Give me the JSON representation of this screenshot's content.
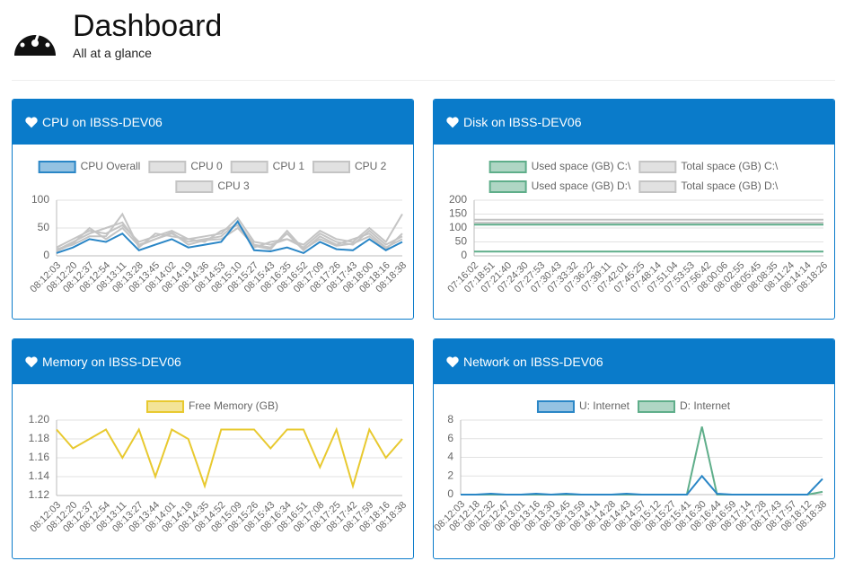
{
  "header": {
    "title": "Dashboard",
    "subtitle": "All at a glance"
  },
  "chart_data": [
    {
      "type": "line",
      "title": "CPU on IBSS-DEV06",
      "categories": [
        "08:12:03",
        "08:12:20",
        "08:12:37",
        "08:12:54",
        "08:13:11",
        "08:13:28",
        "08:13:45",
        "08:14:02",
        "08:14:19",
        "08:14:36",
        "08:14:53",
        "08:15:10",
        "08:15:27",
        "08:15:43",
        "08:16:35",
        "08:16:52",
        "08:17:09",
        "08:17:26",
        "08:17:43",
        "08:18:00",
        "08:18:16",
        "08:18:38"
      ],
      "series": [
        {
          "name": "CPU Overall",
          "color": "#2a86c6",
          "values": [
            5,
            15,
            30,
            25,
            40,
            10,
            20,
            30,
            15,
            20,
            25,
            62,
            10,
            8,
            15,
            5,
            25,
            12,
            10,
            30,
            10,
            25
          ]
        },
        {
          "name": "CPU 0",
          "color": "#c4c4c4",
          "values": [
            15,
            30,
            45,
            40,
            55,
            25,
            35,
            45,
            30,
            35,
            40,
            68,
            25,
            20,
            30,
            15,
            40,
            25,
            20,
            45,
            20,
            35
          ]
        },
        {
          "name": "CPU 1",
          "color": "#c4c4c4",
          "values": [
            10,
            25,
            40,
            50,
            60,
            20,
            30,
            40,
            25,
            30,
            35,
            60,
            20,
            15,
            40,
            10,
            35,
            20,
            30,
            40,
            15,
            30
          ]
        },
        {
          "name": "CPU 2",
          "color": "#c4c4c4",
          "values": [
            12,
            20,
            35,
            35,
            75,
            15,
            40,
            35,
            30,
            25,
            45,
            55,
            15,
            25,
            30,
            20,
            45,
            30,
            25,
            50,
            25,
            75
          ]
        },
        {
          "name": "CPU 3",
          "color": "#c4c4c4",
          "values": [
            8,
            22,
            50,
            30,
            50,
            18,
            30,
            42,
            20,
            28,
            30,
            50,
            18,
            12,
            45,
            12,
            30,
            18,
            22,
            35,
            12,
            40
          ]
        }
      ],
      "ylim": [
        0,
        100
      ],
      "yticks": [
        0,
        50,
        100
      ],
      "grid": true
    },
    {
      "type": "line",
      "title": "Disk on IBSS-DEV06",
      "categories": [
        "07:16:02",
        "07:18:51",
        "07:21:40",
        "07:24:30",
        "07:27:53",
        "07:30:43",
        "07:33:32",
        "07:36:22",
        "07:39:11",
        "07:42:01",
        "07:45:25",
        "07:48:14",
        "07:51:04",
        "07:53:53",
        "07:56:42",
        "08:00:06",
        "08:02:55",
        "08:05:45",
        "08:08:35",
        "08:11:24",
        "08:14:14",
        "08:18:26"
      ],
      "series": [
        {
          "name": "Used space (GB) C:\\",
          "color": "#5fae8a",
          "values": [
            112,
            112,
            112,
            112,
            112,
            112,
            112,
            112,
            112,
            112,
            112,
            112,
            112,
            112,
            112,
            112,
            112,
            112,
            112,
            112,
            112,
            112
          ]
        },
        {
          "name": "Total space (GB) C:\\",
          "color": "#c4c4c4",
          "values": [
            130,
            130,
            130,
            130,
            130,
            130,
            130,
            130,
            130,
            130,
            130,
            130,
            130,
            130,
            130,
            130,
            130,
            130,
            130,
            130,
            130,
            130
          ]
        },
        {
          "name": "Used space (GB) D:\\",
          "color": "#5fae8a",
          "values": [
            15,
            15,
            15,
            15,
            15,
            15,
            15,
            15,
            15,
            15,
            15,
            15,
            15,
            15,
            15,
            15,
            15,
            15,
            15,
            15,
            15,
            15
          ]
        },
        {
          "name": "Total space (GB) D:\\",
          "color": "#c4c4c4",
          "values": [
            119,
            119,
            119,
            119,
            119,
            119,
            119,
            119,
            119,
            119,
            119,
            119,
            119,
            119,
            119,
            119,
            119,
            119,
            119,
            119,
            119,
            119
          ]
        }
      ],
      "ylim": [
        0,
        200
      ],
      "yticks": [
        0,
        50,
        100,
        150,
        200
      ],
      "grid": true
    },
    {
      "type": "line",
      "title": "Memory on IBSS-DEV06",
      "categories": [
        "08:12:03",
        "08:12:20",
        "08:12:37",
        "08:12:54",
        "08:13:11",
        "08:13:27",
        "08:13:44",
        "08:14:01",
        "08:14:18",
        "08:14:35",
        "08:14:52",
        "08:15:09",
        "08:15:26",
        "08:15:43",
        "08:16:34",
        "08:16:51",
        "08:17:08",
        "08:17:25",
        "08:17:42",
        "08:17:59",
        "08:18:16",
        "08:18:38"
      ],
      "series": [
        {
          "name": "Free Memory (GB)",
          "color": "#e8c92f",
          "values": [
            1.19,
            1.17,
            1.18,
            1.19,
            1.16,
            1.19,
            1.14,
            1.19,
            1.18,
            1.13,
            1.19,
            1.19,
            1.19,
            1.17,
            1.19,
            1.19,
            1.15,
            1.19,
            1.13,
            1.19,
            1.16,
            1.18
          ]
        }
      ],
      "ylim": [
        1.12,
        1.2
      ],
      "yticks": [
        1.12,
        1.14,
        1.16,
        1.18,
        {
          "value": 1.2,
          "label": "1.20"
        }
      ],
      "grid": true
    },
    {
      "type": "line",
      "title": "Network on IBSS-DEV06",
      "categories": [
        "08:12:03",
        "08:12:18",
        "08:12:32",
        "08:12:47",
        "08:13:01",
        "08:13:16",
        "08:13:30",
        "08:13:45",
        "08:13:59",
        "08:14:14",
        "08:14:28",
        "08:14:43",
        "08:14:57",
        "08:15:12",
        "08:15:27",
        "08:15:41",
        "08:16:30",
        "08:16:44",
        "08:16:59",
        "08:17:14",
        "08:17:28",
        "08:17:43",
        "08:17:57",
        "08:18:12",
        "08:18:38"
      ],
      "series": [
        {
          "name": "U: Internet",
          "color": "#2a86c6",
          "values": [
            0,
            0,
            0.1,
            0,
            0,
            0.1,
            0,
            0.1,
            0,
            0,
            0,
            0.1,
            0,
            0,
            0,
            0,
            2,
            0.1,
            0,
            0,
            0,
            0,
            0,
            0,
            1.7
          ]
        },
        {
          "name": "D: Internet",
          "color": "#5fae8a",
          "values": [
            0,
            0,
            0,
            0,
            0,
            0,
            0,
            0,
            0,
            0,
            0,
            0,
            0,
            0,
            0,
            0,
            7.3,
            0,
            0,
            0,
            0,
            0,
            0,
            0,
            0.3
          ]
        }
      ],
      "ylim": [
        0,
        8
      ],
      "yticks": [
        0,
        2,
        4,
        6,
        8
      ],
      "grid": true
    }
  ]
}
